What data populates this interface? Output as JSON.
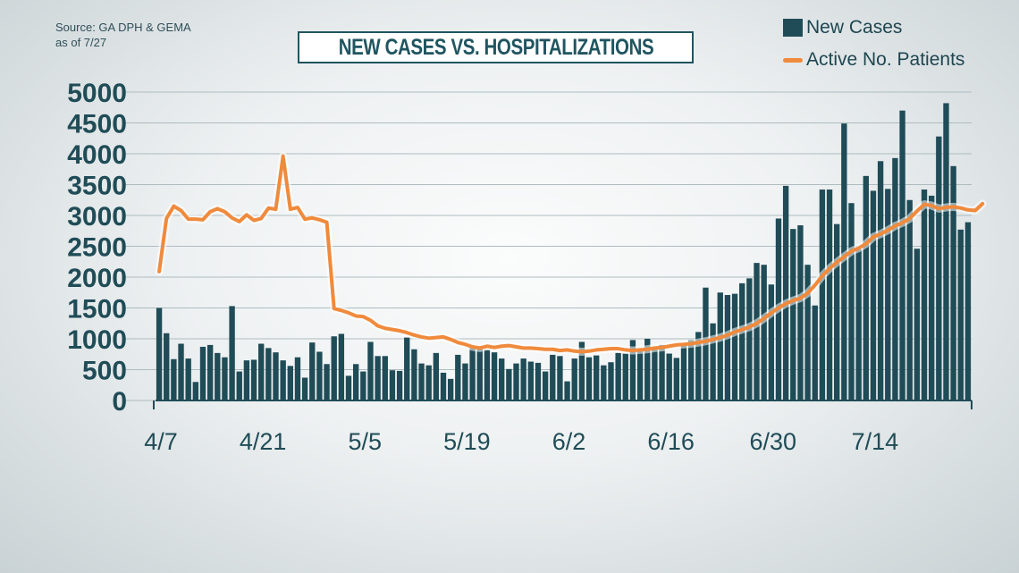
{
  "source": {
    "line1": "Source: GA DPH & GEMA",
    "line2": "as of 7/27"
  },
  "colors": {
    "bar": "#1f4c57",
    "line": "#f08a3c",
    "axis": "#1f4c57",
    "title": "#1f5560"
  },
  "chart_data": {
    "type": "bar",
    "title": "NEW CASES VS. HOSPITALIZATIONS",
    "xlabel": "",
    "ylabel": "",
    "ylim": [
      0,
      5000
    ],
    "yticks": [
      0,
      500,
      1000,
      1500,
      2000,
      2500,
      3000,
      3500,
      4000,
      4500,
      5000
    ],
    "xtick_labels": [
      "4/7",
      "4/21",
      "5/5",
      "5/19",
      "6/2",
      "6/16",
      "6/30",
      "7/14"
    ],
    "grid": true,
    "legend_position": "top-right",
    "start_date": "4/7",
    "series": [
      {
        "name": "New Cases",
        "type": "bar",
        "values": [
          1500,
          1090,
          670,
          920,
          680,
          300,
          870,
          900,
          770,
          700,
          1530,
          470,
          650,
          660,
          920,
          850,
          780,
          650,
          560,
          700,
          370,
          940,
          790,
          590,
          1040,
          1080,
          400,
          590,
          470,
          950,
          720,
          720,
          490,
          480,
          1020,
          830,
          600,
          570,
          770,
          450,
          350,
          740,
          600,
          850,
          840,
          820,
          780,
          680,
          510,
          600,
          680,
          630,
          610,
          470,
          740,
          720,
          310,
          680,
          950,
          700,
          730,
          570,
          620,
          770,
          760,
          980,
          820,
          1000,
          860,
          900,
          760,
          690,
          900,
          980,
          1110,
          1830,
          1250,
          1750,
          1710,
          1730,
          1900,
          1980,
          2230,
          2200,
          1880,
          2950,
          3480,
          2780,
          2840,
          2200,
          1540,
          3420,
          3420,
          2860,
          4490,
          3200,
          2450,
          3640,
          3400,
          3880,
          3430,
          3930,
          4700,
          3250,
          2460,
          3420,
          3320,
          4280,
          4820,
          3800,
          2770,
          2890
        ]
      },
      {
        "name": "Active No. Patients",
        "type": "line",
        "values": [
          2090,
          2950,
          3150,
          3080,
          2940,
          2940,
          2930,
          3060,
          3110,
          3060,
          2960,
          2900,
          3010,
          2920,
          2950,
          3120,
          3100,
          3960,
          3100,
          3130,
          2940,
          2960,
          2930,
          2890,
          1490,
          1460,
          1420,
          1370,
          1360,
          1300,
          1210,
          1170,
          1150,
          1130,
          1100,
          1060,
          1030,
          1010,
          1020,
          1030,
          990,
          940,
          910,
          870,
          850,
          880,
          860,
          880,
          890,
          870,
          850,
          850,
          840,
          830,
          830,
          810,
          820,
          800,
          790,
          800,
          820,
          830,
          840,
          840,
          820,
          810,
          820,
          830,
          850,
          860,
          880,
          900,
          910,
          920,
          940,
          960,
          990,
          1020,
          1060,
          1110,
          1150,
          1190,
          1250,
          1330,
          1420,
          1500,
          1570,
          1620,
          1660,
          1740,
          1870,
          2020,
          2140,
          2240,
          2330,
          2420,
          2470,
          2540,
          2650,
          2700,
          2760,
          2830,
          2880,
          2950,
          3070,
          3180,
          3160,
          3110,
          3130,
          3140,
          3120,
          3090,
          3080,
          3190
        ]
      }
    ]
  }
}
